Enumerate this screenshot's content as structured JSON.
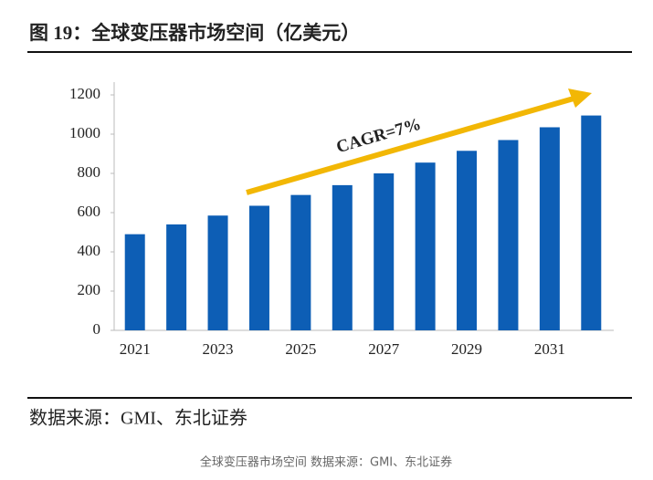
{
  "chart_data": {
    "type": "bar",
    "title": "图 19：全球变压器市场空间（亿美元）",
    "categories": [
      "2021",
      null,
      "2023",
      null,
      "2025",
      null,
      "2027",
      null,
      "2029",
      null,
      "2031",
      null
    ],
    "values": [
      490,
      540,
      585,
      635,
      690,
      740,
      800,
      855,
      915,
      970,
      1035,
      1095
    ],
    "color": "#0d5eb5",
    "ylim": [
      0,
      1200
    ],
    "yticks": [
      0,
      200,
      400,
      600,
      800,
      1000,
      1200
    ],
    "grid": false,
    "annotation": "CAGR=7%",
    "source": "数据来源：GMI、东北证券",
    "caption": "全球变压器市场空间 数据来源：GMI、东北证券"
  }
}
